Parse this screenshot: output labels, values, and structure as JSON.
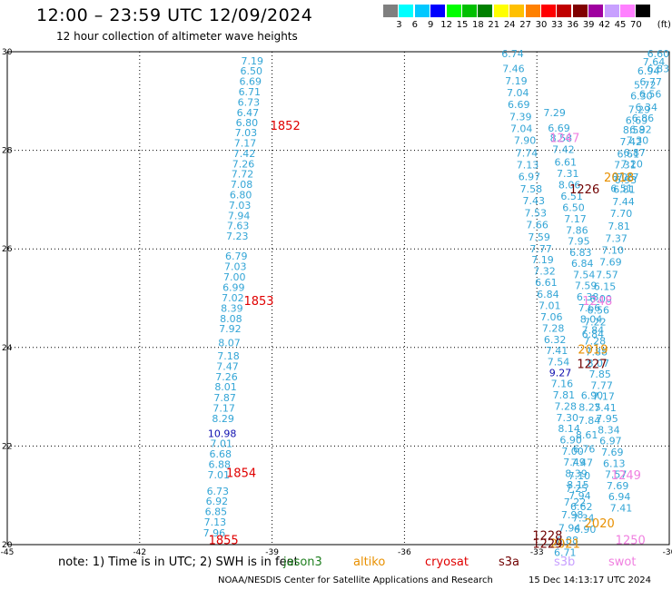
{
  "header": {
    "title": "12:00 – 23:59 UTC 12/09/2024",
    "subtitle": "12 hour collection of altimeter wave heights"
  },
  "legend": {
    "unit_label": "(ft)",
    "bins": [
      {
        "label": "3",
        "color": "#7f7f7f"
      },
      {
        "label": "6",
        "color": "#00ffff"
      },
      {
        "label": "9",
        "color": "#00c8ff"
      },
      {
        "label": "12",
        "color": "#0000ff"
      },
      {
        "label": "15",
        "color": "#00ff00"
      },
      {
        "label": "18",
        "color": "#00c000"
      },
      {
        "label": "21",
        "color": "#008000"
      },
      {
        "label": "24",
        "color": "#ffff00"
      },
      {
        "label": "27",
        "color": "#ffc000"
      },
      {
        "label": "30",
        "color": "#ff8000"
      },
      {
        "label": "33",
        "color": "#ff0000"
      },
      {
        "label": "36",
        "color": "#c00000"
      },
      {
        "label": "39",
        "color": "#800000"
      },
      {
        "label": "42",
        "color": "#a000a0"
      },
      {
        "label": "45",
        "color": "#c8a0ff"
      },
      {
        "label": "70",
        "color": "#ff80ff"
      },
      {
        "label": "",
        "color": "#000000"
      }
    ]
  },
  "chart_data": {
    "type": "scatter",
    "xlim": [
      -45,
      -30
    ],
    "ylim": [
      20,
      30
    ],
    "x_ticks": [
      "-45",
      "-42",
      "-39",
      "-36",
      "-33",
      "-30"
    ],
    "y_ticks": [
      "20",
      "22",
      "24",
      "26",
      "28",
      "30"
    ],
    "grid": true,
    "colors": {
      "swh": "#33a5d6",
      "swh_dark": "#1010b0",
      "time": "#e00000",
      "time_dark": "#700000",
      "time_orange": "#e89000",
      "time_pink": "#f080e0"
    },
    "points": [
      {
        "x": -39.45,
        "y": 29.82,
        "v": "7.19"
      },
      {
        "x": -39.47,
        "y": 29.61,
        "v": "6.50"
      },
      {
        "x": -39.49,
        "y": 29.4,
        "v": "6.69"
      },
      {
        "x": -39.51,
        "y": 29.19,
        "v": "6.71"
      },
      {
        "x": -39.53,
        "y": 28.98,
        "v": "6.73"
      },
      {
        "x": -39.55,
        "y": 28.77,
        "v": "6.47"
      },
      {
        "x": -39.57,
        "y": 28.56,
        "v": "6.80"
      },
      {
        "x": -39.59,
        "y": 28.36,
        "v": "7.03"
      },
      {
        "x": -39.61,
        "y": 28.15,
        "v": "7.17"
      },
      {
        "x": -39.63,
        "y": 27.94,
        "v": "7.42"
      },
      {
        "x": -39.65,
        "y": 27.73,
        "v": "7.26"
      },
      {
        "x": -39.67,
        "y": 27.52,
        "v": "7.72"
      },
      {
        "x": -39.69,
        "y": 27.31,
        "v": "7.08"
      },
      {
        "x": -39.71,
        "y": 27.1,
        "v": "6.80"
      },
      {
        "x": -39.73,
        "y": 26.89,
        "v": "7.03"
      },
      {
        "x": -39.75,
        "y": 26.68,
        "v": "7.94"
      },
      {
        "x": -39.77,
        "y": 26.47,
        "v": "7.63"
      },
      {
        "x": -39.79,
        "y": 26.26,
        "v": "7.23"
      },
      {
        "x": -39.81,
        "y": 25.86,
        "v": "6.79"
      },
      {
        "x": -39.83,
        "y": 25.64,
        "v": "7.03"
      },
      {
        "x": -39.85,
        "y": 25.43,
        "v": "7.00"
      },
      {
        "x": -39.87,
        "y": 25.22,
        "v": "6.99"
      },
      {
        "x": -39.89,
        "y": 25.01,
        "v": "7.02"
      },
      {
        "x": -39.91,
        "y": 24.8,
        "v": "8.39"
      },
      {
        "x": -39.93,
        "y": 24.59,
        "v": "8.08"
      },
      {
        "x": -39.95,
        "y": 24.38,
        "v": "7.92"
      },
      {
        "x": -39.97,
        "y": 24.1,
        "v": "8.07"
      },
      {
        "x": -39.99,
        "y": 23.83,
        "v": "7.18"
      },
      {
        "x": -40.01,
        "y": 23.62,
        "v": "7.47"
      },
      {
        "x": -40.03,
        "y": 23.41,
        "v": "7.26"
      },
      {
        "x": -40.05,
        "y": 23.2,
        "v": "8.01"
      },
      {
        "x": -40.07,
        "y": 22.98,
        "v": "7.87"
      },
      {
        "x": -40.09,
        "y": 22.77,
        "v": "7.17"
      },
      {
        "x": -40.11,
        "y": 22.56,
        "v": "8.29"
      },
      {
        "x": -40.13,
        "y": 22.26,
        "v": "10.98",
        "dark": true
      },
      {
        "x": -40.15,
        "y": 22.05,
        "v": "7.01"
      },
      {
        "x": -40.17,
        "y": 21.84,
        "v": "6.68"
      },
      {
        "x": -40.19,
        "y": 21.63,
        "v": "6.88"
      },
      {
        "x": -40.21,
        "y": 21.42,
        "v": "7.01"
      },
      {
        "x": -40.23,
        "y": 21.09,
        "v": "6.73"
      },
      {
        "x": -40.25,
        "y": 20.88,
        "v": "6.92"
      },
      {
        "x": -40.27,
        "y": 20.67,
        "v": "6.85"
      },
      {
        "x": -40.29,
        "y": 20.46,
        "v": "7.13"
      },
      {
        "x": -40.31,
        "y": 20.24,
        "v": "7.96"
      },
      {
        "x": -33.55,
        "y": 29.96,
        "v": "6.74"
      },
      {
        "x": -33.53,
        "y": 29.66,
        "v": "7.46"
      },
      {
        "x": -33.47,
        "y": 29.41,
        "v": "7.19"
      },
      {
        "x": -33.43,
        "y": 29.17,
        "v": "7.04"
      },
      {
        "x": -33.41,
        "y": 28.93,
        "v": "6.69"
      },
      {
        "x": -33.37,
        "y": 28.68,
        "v": "7.39"
      },
      {
        "x": -33.35,
        "y": 28.44,
        "v": "7.04"
      },
      {
        "x": -33.27,
        "y": 28.2,
        "v": "7.90"
      },
      {
        "x": -33.23,
        "y": 27.95,
        "v": "7.74"
      },
      {
        "x": -33.21,
        "y": 27.71,
        "v": "7.13"
      },
      {
        "x": -33.17,
        "y": 27.47,
        "v": "6.97"
      },
      {
        "x": -33.13,
        "y": 27.22,
        "v": "7.58"
      },
      {
        "x": -33.07,
        "y": 26.98,
        "v": "7.43"
      },
      {
        "x": -33.03,
        "y": 26.73,
        "v": "7.53"
      },
      {
        "x": -32.99,
        "y": 26.49,
        "v": "7.66"
      },
      {
        "x": -32.95,
        "y": 26.24,
        "v": "7.59"
      },
      {
        "x": -32.91,
        "y": 26.0,
        "v": "7.77"
      },
      {
        "x": -32.87,
        "y": 25.78,
        "v": "7.19"
      },
      {
        "x": -32.83,
        "y": 25.55,
        "v": "7.32"
      },
      {
        "x": -32.79,
        "y": 25.32,
        "v": "6.61"
      },
      {
        "x": -32.75,
        "y": 25.08,
        "v": "6.84"
      },
      {
        "x": -32.71,
        "y": 24.85,
        "v": "7.01"
      },
      {
        "x": -32.67,
        "y": 24.62,
        "v": "7.06"
      },
      {
        "x": -32.63,
        "y": 24.39,
        "v": "7.28"
      },
      {
        "x": -32.59,
        "y": 24.16,
        "v": "6.32"
      },
      {
        "x": -32.55,
        "y": 23.94,
        "v": "7.41"
      },
      {
        "x": -32.51,
        "y": 23.71,
        "v": "7.54"
      },
      {
        "x": -32.47,
        "y": 23.49,
        "v": "9.27",
        "dark": true
      },
      {
        "x": -32.43,
        "y": 23.27,
        "v": "7.16"
      },
      {
        "x": -32.39,
        "y": 23.04,
        "v": "7.81"
      },
      {
        "x": -32.35,
        "y": 22.81,
        "v": "7.28"
      },
      {
        "x": -32.31,
        "y": 22.58,
        "v": "7.30"
      },
      {
        "x": -32.27,
        "y": 22.36,
        "v": "8.14"
      },
      {
        "x": -32.23,
        "y": 22.13,
        "v": "6.90"
      },
      {
        "x": -32.19,
        "y": 21.9,
        "v": "7.00"
      },
      {
        "x": -32.15,
        "y": 21.68,
        "v": "7.49"
      },
      {
        "x": -32.11,
        "y": 21.45,
        "v": "8.39"
      },
      {
        "x": -32.07,
        "y": 21.22,
        "v": "8.15"
      },
      {
        "x": -32.03,
        "y": 20.99,
        "v": "7.94"
      },
      {
        "x": -31.99,
        "y": 20.77,
        "v": "6.62"
      },
      {
        "x": -31.95,
        "y": 20.54,
        "v": "7.34"
      },
      {
        "x": -31.91,
        "y": 20.31,
        "v": "6.90"
      },
      {
        "x": -32.6,
        "y": 28.77,
        "v": "7.29"
      },
      {
        "x": -32.5,
        "y": 28.45,
        "v": "6.69"
      },
      {
        "x": -32.45,
        "y": 28.25,
        "v": "8.58"
      },
      {
        "x": -32.4,
        "y": 28.02,
        "v": "7.42"
      },
      {
        "x": -32.35,
        "y": 27.76,
        "v": "6.61"
      },
      {
        "x": -32.3,
        "y": 27.53,
        "v": "7.31"
      },
      {
        "x": -32.26,
        "y": 27.3,
        "v": "8.06"
      },
      {
        "x": -32.21,
        "y": 27.07,
        "v": "6.51"
      },
      {
        "x": -32.17,
        "y": 26.84,
        "v": "6.50"
      },
      {
        "x": -32.13,
        "y": 26.61,
        "v": "7.17"
      },
      {
        "x": -32.09,
        "y": 26.38,
        "v": "7.86"
      },
      {
        "x": -32.05,
        "y": 26.16,
        "v": "7.95"
      },
      {
        "x": -32.01,
        "y": 25.93,
        "v": "6.83"
      },
      {
        "x": -31.97,
        "y": 25.71,
        "v": "6.84"
      },
      {
        "x": -31.93,
        "y": 25.48,
        "v": "7.54"
      },
      {
        "x": -31.89,
        "y": 25.26,
        "v": "7.59"
      },
      {
        "x": -31.85,
        "y": 25.03,
        "v": "6.38"
      },
      {
        "x": -31.81,
        "y": 24.81,
        "v": "7.66"
      },
      {
        "x": -31.77,
        "y": 24.58,
        "v": "8.04"
      },
      {
        "x": -31.73,
        "y": 24.36,
        "v": "7.84"
      },
      {
        "x": -31.69,
        "y": 24.13,
        "v": "7.28"
      },
      {
        "x": -31.65,
        "y": 23.91,
        "v": "7.88"
      },
      {
        "x": -31.61,
        "y": 23.68,
        "v": "8.07"
      },
      {
        "x": -31.57,
        "y": 23.46,
        "v": "7.85"
      },
      {
        "x": -31.53,
        "y": 23.23,
        "v": "7.77"
      },
      {
        "x": -31.49,
        "y": 23.01,
        "v": "7.17"
      },
      {
        "x": -31.45,
        "y": 22.78,
        "v": "7.41"
      },
      {
        "x": -31.41,
        "y": 22.56,
        "v": "7.95"
      },
      {
        "x": -31.37,
        "y": 22.33,
        "v": "8.34"
      },
      {
        "x": -31.33,
        "y": 22.11,
        "v": "6.97"
      },
      {
        "x": -31.29,
        "y": 21.88,
        "v": "7.69"
      },
      {
        "x": -31.25,
        "y": 21.65,
        "v": "6.13"
      },
      {
        "x": -31.21,
        "y": 21.43,
        "v": "7.57"
      },
      {
        "x": -31.17,
        "y": 21.2,
        "v": "7.69"
      },
      {
        "x": -31.13,
        "y": 20.98,
        "v": "6.94"
      },
      {
        "x": -31.09,
        "y": 20.75,
        "v": "7.41"
      },
      {
        "x": -30.25,
        "y": 29.96,
        "v": "6.60"
      },
      {
        "x": -30.35,
        "y": 29.8,
        "v": "7.64"
      },
      {
        "x": -30.25,
        "y": 29.66,
        "v": "6.83"
      },
      {
        "x": -30.47,
        "y": 29.61,
        "v": "6.94"
      },
      {
        "x": -30.42,
        "y": 29.39,
        "v": "6.77"
      },
      {
        "x": -30.55,
        "y": 29.33,
        "v": "5.72"
      },
      {
        "x": -30.43,
        "y": 29.14,
        "v": "6.56"
      },
      {
        "x": -30.63,
        "y": 29.11,
        "v": "6.30"
      },
      {
        "x": -30.52,
        "y": 28.88,
        "v": "6.34"
      },
      {
        "x": -30.68,
        "y": 28.83,
        "v": "7.29"
      },
      {
        "x": -30.6,
        "y": 28.66,
        "v": "6.86"
      },
      {
        "x": -30.74,
        "y": 28.61,
        "v": "6.69"
      },
      {
        "x": -30.65,
        "y": 28.43,
        "v": "6.92"
      },
      {
        "x": -30.8,
        "y": 28.42,
        "v": "8.58"
      },
      {
        "x": -30.72,
        "y": 28.2,
        "v": "7.30"
      },
      {
        "x": -30.87,
        "y": 28.18,
        "v": "7.42"
      },
      {
        "x": -30.79,
        "y": 27.96,
        "v": "6.87"
      },
      {
        "x": -30.93,
        "y": 27.93,
        "v": "6.61"
      },
      {
        "x": -30.85,
        "y": 27.73,
        "v": "7.20"
      },
      {
        "x": -31.0,
        "y": 27.71,
        "v": "7.31"
      },
      {
        "x": -30.94,
        "y": 27.46,
        "v": "7.27"
      },
      {
        "x": -31.05,
        "y": 27.46,
        "v": "8.06"
      },
      {
        "x": -30.99,
        "y": 27.4,
        "v": "6.93"
      },
      {
        "x": -31.08,
        "y": 27.23,
        "v": "6.51"
      },
      {
        "x": -31.02,
        "y": 27.21,
        "v": "6.81"
      },
      {
        "x": -31.04,
        "y": 26.96,
        "v": "7.44"
      },
      {
        "x": -31.09,
        "y": 26.72,
        "v": "7.70"
      },
      {
        "x": -31.14,
        "y": 26.46,
        "v": "7.81"
      },
      {
        "x": -31.2,
        "y": 26.22,
        "v": "7.37"
      },
      {
        "x": -31.28,
        "y": 25.98,
        "v": "7.10"
      },
      {
        "x": -31.33,
        "y": 25.74,
        "v": "7.69"
      },
      {
        "x": -31.41,
        "y": 25.48,
        "v": "7.57"
      },
      {
        "x": -31.46,
        "y": 25.24,
        "v": "6.15"
      },
      {
        "x": -31.55,
        "y": 24.99,
        "v": "6.00"
      },
      {
        "x": -31.61,
        "y": 24.76,
        "v": "6.56"
      },
      {
        "x": -31.68,
        "y": 24.52,
        "v": "7.22"
      },
      {
        "x": -31.73,
        "y": 24.27,
        "v": "6.84"
      },
      {
        "x": -31.75,
        "y": 23.03,
        "v": "6.90"
      },
      {
        "x": -31.8,
        "y": 22.79,
        "v": "8.25"
      },
      {
        "x": -31.81,
        "y": 22.52,
        "v": "7.84"
      },
      {
        "x": -31.87,
        "y": 22.23,
        "v": "8.61"
      },
      {
        "x": -31.93,
        "y": 21.94,
        "v": "6.76"
      },
      {
        "x": -31.98,
        "y": 21.67,
        "v": "7.47"
      },
      {
        "x": -32.04,
        "y": 21.4,
        "v": "7.10"
      },
      {
        "x": -32.1,
        "y": 21.14,
        "v": "7.25"
      },
      {
        "x": -32.14,
        "y": 20.87,
        "v": "7.22"
      },
      {
        "x": -32.2,
        "y": 20.61,
        "v": "7.98"
      },
      {
        "x": -32.26,
        "y": 20.34,
        "v": "7.94"
      },
      {
        "x": -32.31,
        "y": 20.09,
        "v": "6.88"
      },
      {
        "x": -32.36,
        "y": 19.84,
        "v": "6.71"
      }
    ],
    "time_labels": [
      {
        "x": -38.7,
        "y": 28.51,
        "v": "1852",
        "color": "time"
      },
      {
        "x": -39.3,
        "y": 24.95,
        "v": "1853",
        "color": "time"
      },
      {
        "x": -39.7,
        "y": 21.46,
        "v": "1854",
        "color": "time"
      },
      {
        "x": -40.1,
        "y": 20.1,
        "v": "1855",
        "color": "time"
      },
      {
        "x": -32.37,
        "y": 28.26,
        "v": "1247",
        "color": "time_pink"
      },
      {
        "x": -31.14,
        "y": 27.46,
        "v": "2018",
        "color": "time_orange"
      },
      {
        "x": -31.92,
        "y": 27.22,
        "v": "1226",
        "color": "time_dark"
      },
      {
        "x": -31.63,
        "y": 24.95,
        "v": "1248",
        "color": "time_pink"
      },
      {
        "x": -31.73,
        "y": 23.97,
        "v": "2019",
        "color": "time_orange"
      },
      {
        "x": -31.75,
        "y": 23.67,
        "v": "1227",
        "color": "time_dark"
      },
      {
        "x": -30.98,
        "y": 21.42,
        "v": "1249",
        "color": "time_pink"
      },
      {
        "x": -31.58,
        "y": 20.44,
        "v": "2020",
        "color": "time_orange"
      },
      {
        "x": -32.76,
        "y": 20.19,
        "v": "1228",
        "color": "time_dark"
      },
      {
        "x": -32.36,
        "y": 20.03,
        "v": "2021",
        "color": "time_orange"
      },
      {
        "x": -32.76,
        "y": 20.03,
        "v": "1229",
        "color": "time_dark"
      },
      {
        "x": -30.88,
        "y": 20.1,
        "v": "1250",
        "color": "time_pink"
      }
    ]
  },
  "note": {
    "text": "note: 1) Time is in UTC; 2) SWH is in feet",
    "missions": [
      {
        "name": "jason3",
        "color": "#1f7f1f"
      },
      {
        "name": "altiko",
        "color": "#e89000"
      },
      {
        "name": "cryosat",
        "color": "#e00000"
      },
      {
        "name": "s3a",
        "color": "#700000"
      },
      {
        "name": "s3b",
        "color": "#c8a0ff"
      },
      {
        "name": "swot",
        "color": "#f080e0"
      }
    ]
  },
  "footer": {
    "source": "NOAA/NESDIS Center for Satellite Applications and Research",
    "generated": "15 Dec 14:13:17 UTC 2024"
  }
}
